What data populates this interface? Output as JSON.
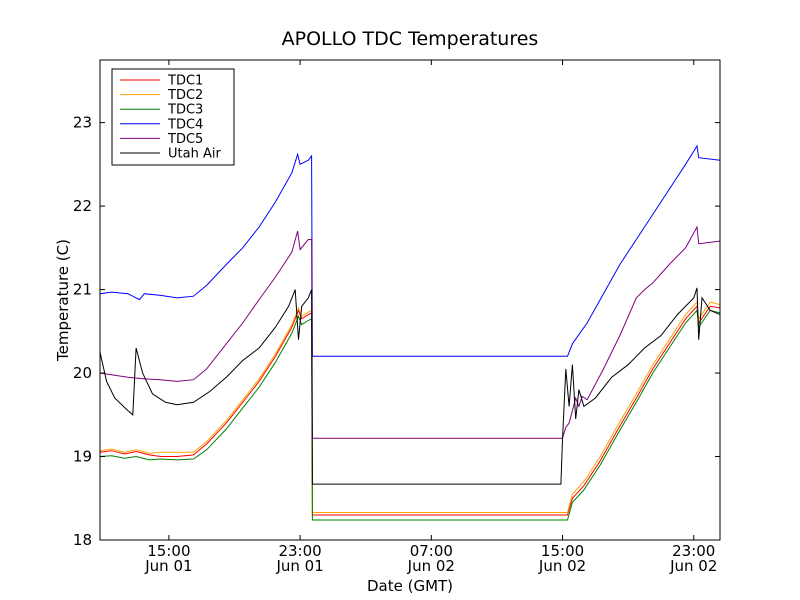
{
  "chart_data": {
    "type": "line",
    "title": "APOLLO TDC Temperatures",
    "xlabel": "Date (GMT)",
    "ylabel": "Temperature (C)",
    "ylim": [
      18,
      23.75
    ],
    "xlim": [
      10.8,
      48.6
    ],
    "x_unit": "hours since Jun 01 00:00 GMT",
    "yticks": [
      {
        "value": 18,
        "label": "18"
      },
      {
        "value": 19,
        "label": "19"
      },
      {
        "value": 20,
        "label": "20"
      },
      {
        "value": 21,
        "label": "21"
      },
      {
        "value": 22,
        "label": "22"
      },
      {
        "value": 23,
        "label": "23"
      }
    ],
    "xticks": [
      {
        "value": 15,
        "time": "15:00",
        "date": "Jun 01"
      },
      {
        "value": 23,
        "time": "23:00",
        "date": "Jun 01"
      },
      {
        "value": 31,
        "time": "07:00",
        "date": "Jun 02"
      },
      {
        "value": 39,
        "time": "15:00",
        "date": "Jun 02"
      },
      {
        "value": 47,
        "time": "23:00",
        "date": "Jun 02"
      }
    ],
    "legend_position": "top-left",
    "series": [
      {
        "name": "TDC1",
        "color": "#ff0000",
        "points": [
          [
            10.8,
            19.05
          ],
          [
            11.5,
            19.07
          ],
          [
            12.3,
            19.03
          ],
          [
            13.0,
            19.06
          ],
          [
            13.8,
            19.02
          ],
          [
            14.5,
            19.0
          ],
          [
            15.5,
            19.0
          ],
          [
            16.5,
            19.02
          ],
          [
            17.3,
            19.15
          ],
          [
            18.5,
            19.4
          ],
          [
            19.5,
            19.65
          ],
          [
            20.5,
            19.9
          ],
          [
            21.5,
            20.2
          ],
          [
            22.5,
            20.55
          ],
          [
            22.9,
            20.75
          ],
          [
            23.1,
            20.65
          ],
          [
            23.5,
            20.7
          ],
          [
            23.7,
            20.72
          ],
          [
            23.75,
            18.3
          ],
          [
            24.5,
            18.3
          ],
          [
            30,
            18.3
          ],
          [
            35,
            18.3
          ],
          [
            39,
            18.3
          ],
          [
            39.3,
            18.3
          ],
          [
            39.6,
            18.5
          ],
          [
            40.3,
            18.65
          ],
          [
            41.3,
            18.95
          ],
          [
            42.3,
            19.3
          ],
          [
            43.5,
            19.7
          ],
          [
            44.5,
            20.05
          ],
          [
            45.5,
            20.35
          ],
          [
            46.5,
            20.65
          ],
          [
            47.2,
            20.8
          ],
          [
            47.3,
            20.6
          ],
          [
            48.0,
            20.8
          ],
          [
            48.6,
            20.78
          ]
        ]
      },
      {
        "name": "TDC2",
        "color": "#ffa500",
        "points": [
          [
            10.8,
            19.07
          ],
          [
            11.5,
            19.09
          ],
          [
            12.3,
            19.05
          ],
          [
            13.0,
            19.08
          ],
          [
            13.8,
            19.04
          ],
          [
            14.5,
            19.05
          ],
          [
            15.5,
            19.05
          ],
          [
            16.5,
            19.05
          ],
          [
            17.3,
            19.18
          ],
          [
            18.5,
            19.43
          ],
          [
            19.5,
            19.68
          ],
          [
            20.5,
            19.93
          ],
          [
            21.5,
            20.23
          ],
          [
            22.5,
            20.58
          ],
          [
            22.9,
            20.78
          ],
          [
            23.1,
            20.68
          ],
          [
            23.5,
            20.73
          ],
          [
            23.7,
            20.75
          ],
          [
            23.75,
            18.33
          ],
          [
            24.5,
            18.33
          ],
          [
            30,
            18.33
          ],
          [
            35,
            18.33
          ],
          [
            39,
            18.33
          ],
          [
            39.3,
            18.33
          ],
          [
            39.6,
            18.55
          ],
          [
            40.3,
            18.7
          ],
          [
            41.3,
            19.0
          ],
          [
            42.3,
            19.35
          ],
          [
            43.5,
            19.75
          ],
          [
            44.5,
            20.1
          ],
          [
            45.5,
            20.4
          ],
          [
            46.5,
            20.7
          ],
          [
            47.2,
            20.85
          ],
          [
            47.3,
            20.65
          ],
          [
            48.0,
            20.85
          ],
          [
            48.6,
            20.82
          ]
        ]
      },
      {
        "name": "TDC3",
        "color": "#008000",
        "points": [
          [
            10.8,
            19.0
          ],
          [
            11.5,
            19.01
          ],
          [
            12.3,
            18.98
          ],
          [
            13.0,
            19.0
          ],
          [
            13.8,
            18.96
          ],
          [
            14.5,
            18.97
          ],
          [
            15.5,
            18.96
          ],
          [
            16.5,
            18.97
          ],
          [
            17.3,
            19.08
          ],
          [
            18.5,
            19.33
          ],
          [
            19.5,
            19.58
          ],
          [
            20.5,
            19.83
          ],
          [
            21.5,
            20.13
          ],
          [
            22.5,
            20.48
          ],
          [
            22.9,
            20.68
          ],
          [
            23.1,
            20.58
          ],
          [
            23.5,
            20.63
          ],
          [
            23.7,
            20.65
          ],
          [
            23.75,
            18.24
          ],
          [
            24.5,
            18.24
          ],
          [
            30,
            18.24
          ],
          [
            35,
            18.24
          ],
          [
            39,
            18.24
          ],
          [
            39.3,
            18.24
          ],
          [
            39.6,
            18.45
          ],
          [
            40.3,
            18.6
          ],
          [
            41.3,
            18.9
          ],
          [
            42.3,
            19.25
          ],
          [
            43.5,
            19.65
          ],
          [
            44.5,
            20.0
          ],
          [
            45.5,
            20.3
          ],
          [
            46.5,
            20.6
          ],
          [
            47.2,
            20.75
          ],
          [
            47.3,
            20.55
          ],
          [
            48.0,
            20.75
          ],
          [
            48.6,
            20.72
          ]
        ]
      },
      {
        "name": "TDC4",
        "color": "#0000ff",
        "points": [
          [
            10.8,
            20.95
          ],
          [
            11.5,
            20.97
          ],
          [
            12.5,
            20.95
          ],
          [
            13.2,
            20.88
          ],
          [
            13.5,
            20.95
          ],
          [
            14.5,
            20.93
          ],
          [
            15.5,
            20.9
          ],
          [
            16.5,
            20.92
          ],
          [
            17.3,
            21.05
          ],
          [
            18.5,
            21.3
          ],
          [
            19.5,
            21.5
          ],
          [
            20.5,
            21.75
          ],
          [
            21.5,
            22.05
          ],
          [
            22.5,
            22.4
          ],
          [
            22.85,
            22.62
          ],
          [
            23.0,
            22.5
          ],
          [
            23.5,
            22.55
          ],
          [
            23.7,
            22.6
          ],
          [
            23.75,
            20.2
          ],
          [
            24.5,
            20.2
          ],
          [
            30,
            20.2
          ],
          [
            35,
            20.2
          ],
          [
            39,
            20.2
          ],
          [
            39.3,
            20.2
          ],
          [
            39.6,
            20.35
          ],
          [
            40.5,
            20.6
          ],
          [
            41.5,
            20.95
          ],
          [
            42.5,
            21.3
          ],
          [
            43.5,
            21.6
          ],
          [
            44.5,
            21.9
          ],
          [
            45.5,
            22.2
          ],
          [
            46.5,
            22.5
          ],
          [
            47.2,
            22.72
          ],
          [
            47.3,
            22.58
          ],
          [
            48.6,
            22.55
          ]
        ]
      },
      {
        "name": "TDC5",
        "color": "#800080",
        "points": [
          [
            10.8,
            20.0
          ],
          [
            11.5,
            19.98
          ],
          [
            12.5,
            19.95
          ],
          [
            13.5,
            19.93
          ],
          [
            14.5,
            19.92
          ],
          [
            15.5,
            19.9
          ],
          [
            16.5,
            19.92
          ],
          [
            17.3,
            20.05
          ],
          [
            18.5,
            20.35
          ],
          [
            19.5,
            20.6
          ],
          [
            20.5,
            20.88
          ],
          [
            21.5,
            21.15
          ],
          [
            22.5,
            21.45
          ],
          [
            22.85,
            21.7
          ],
          [
            23.0,
            21.48
          ],
          [
            23.5,
            21.6
          ],
          [
            23.7,
            21.6
          ],
          [
            23.75,
            19.22
          ],
          [
            24.5,
            19.22
          ],
          [
            30,
            19.22
          ],
          [
            35,
            19.22
          ],
          [
            39,
            19.22
          ],
          [
            39.2,
            19.35
          ],
          [
            39.4,
            19.4
          ],
          [
            39.6,
            19.55
          ],
          [
            39.8,
            19.7
          ],
          [
            40.0,
            19.6
          ],
          [
            40.2,
            19.72
          ],
          [
            40.5,
            19.68
          ],
          [
            41.5,
            20.05
          ],
          [
            42.5,
            20.45
          ],
          [
            43.5,
            20.9
          ],
          [
            44.0,
            21.0
          ],
          [
            44.5,
            21.08
          ],
          [
            45.5,
            21.3
          ],
          [
            46.5,
            21.5
          ],
          [
            47.2,
            21.75
          ],
          [
            47.3,
            21.55
          ],
          [
            48.6,
            21.58
          ]
        ]
      },
      {
        "name": "Utah Air",
        "color": "#000000",
        "points": [
          [
            10.8,
            20.25
          ],
          [
            11.2,
            19.9
          ],
          [
            11.7,
            19.7
          ],
          [
            12.5,
            19.55
          ],
          [
            12.8,
            19.5
          ],
          [
            13.0,
            20.3
          ],
          [
            13.4,
            20.0
          ],
          [
            14.0,
            19.75
          ],
          [
            14.8,
            19.65
          ],
          [
            15.5,
            19.62
          ],
          [
            16.5,
            19.65
          ],
          [
            17.5,
            19.78
          ],
          [
            18.5,
            19.95
          ],
          [
            19.5,
            20.15
          ],
          [
            20.5,
            20.3
          ],
          [
            21.5,
            20.55
          ],
          [
            22.3,
            20.8
          ],
          [
            22.7,
            21.0
          ],
          [
            22.9,
            20.4
          ],
          [
            23.1,
            20.8
          ],
          [
            23.5,
            20.9
          ],
          [
            23.7,
            21.0
          ],
          [
            23.75,
            18.67
          ],
          [
            24.5,
            18.67
          ],
          [
            30,
            18.67
          ],
          [
            35,
            18.67
          ],
          [
            38.9,
            18.67
          ],
          [
            39.0,
            19.2
          ],
          [
            39.2,
            20.05
          ],
          [
            39.4,
            19.6
          ],
          [
            39.6,
            20.1
          ],
          [
            39.8,
            19.45
          ],
          [
            40.0,
            19.8
          ],
          [
            40.3,
            19.6
          ],
          [
            41.0,
            19.7
          ],
          [
            42.0,
            19.95
          ],
          [
            43.0,
            20.1
          ],
          [
            44.0,
            20.3
          ],
          [
            45.0,
            20.45
          ],
          [
            46.0,
            20.7
          ],
          [
            47.0,
            20.9
          ],
          [
            47.2,
            21.02
          ],
          [
            47.3,
            20.4
          ],
          [
            47.5,
            20.9
          ],
          [
            48.0,
            20.75
          ],
          [
            48.6,
            20.7
          ]
        ]
      }
    ]
  }
}
